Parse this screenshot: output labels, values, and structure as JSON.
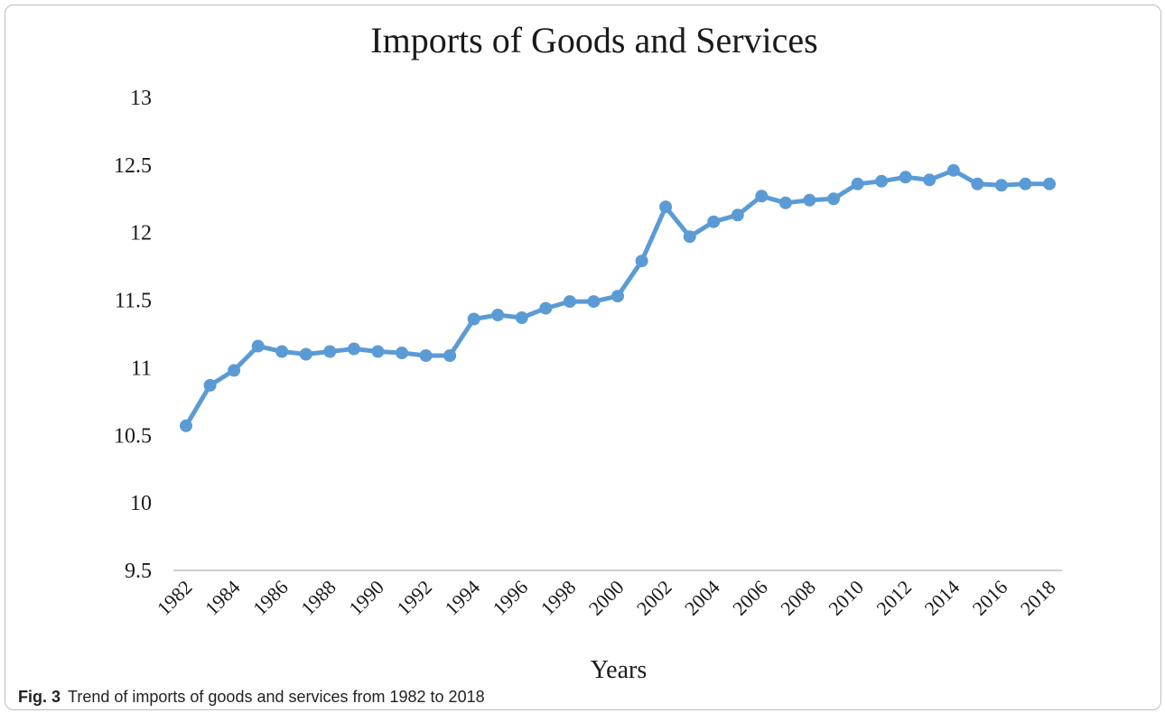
{
  "figure": {
    "label": "Fig. 3",
    "caption": "Trend of imports of goods and services from 1982 to 2018"
  },
  "colors": {
    "series": "#5b9bd5",
    "axis": "#bfbfbf",
    "text": "#1a1a1a"
  },
  "chart_data": {
    "type": "line",
    "title": "Imports of Goods and Services",
    "xlabel": "Years",
    "ylabel": "",
    "ylim": [
      9.5,
      13
    ],
    "yticks": [
      9.5,
      10,
      10.5,
      11,
      11.5,
      12,
      12.5,
      13
    ],
    "xtick_labels": [
      "1982",
      "1984",
      "1986",
      "1988",
      "1990",
      "1992",
      "1994",
      "1996",
      "1998",
      "2000",
      "2002",
      "2004",
      "2006",
      "2008",
      "2010",
      "2012",
      "2014",
      "2016",
      "2018"
    ],
    "grid": false,
    "legend": "none",
    "x": [
      1982,
      1983,
      1984,
      1985,
      1986,
      1987,
      1988,
      1989,
      1990,
      1991,
      1992,
      1993,
      1994,
      1995,
      1996,
      1997,
      1998,
      1999,
      2000,
      2001,
      2002,
      2003,
      2004,
      2005,
      2006,
      2007,
      2008,
      2009,
      2010,
      2011,
      2012,
      2013,
      2014,
      2015,
      2016,
      2017,
      2018
    ],
    "series": [
      {
        "values": [
          10.57,
          10.87,
          10.98,
          11.16,
          11.12,
          11.1,
          11.12,
          11.14,
          11.12,
          11.11,
          11.09,
          11.09,
          11.36,
          11.39,
          11.37,
          11.44,
          11.49,
          11.49,
          11.53,
          11.79,
          12.19,
          11.97,
          12.08,
          12.13,
          12.27,
          12.22,
          12.24,
          12.25,
          12.36,
          12.38,
          12.41,
          12.39,
          12.46,
          12.36,
          12.35,
          12.36,
          12.36
        ]
      }
    ]
  }
}
